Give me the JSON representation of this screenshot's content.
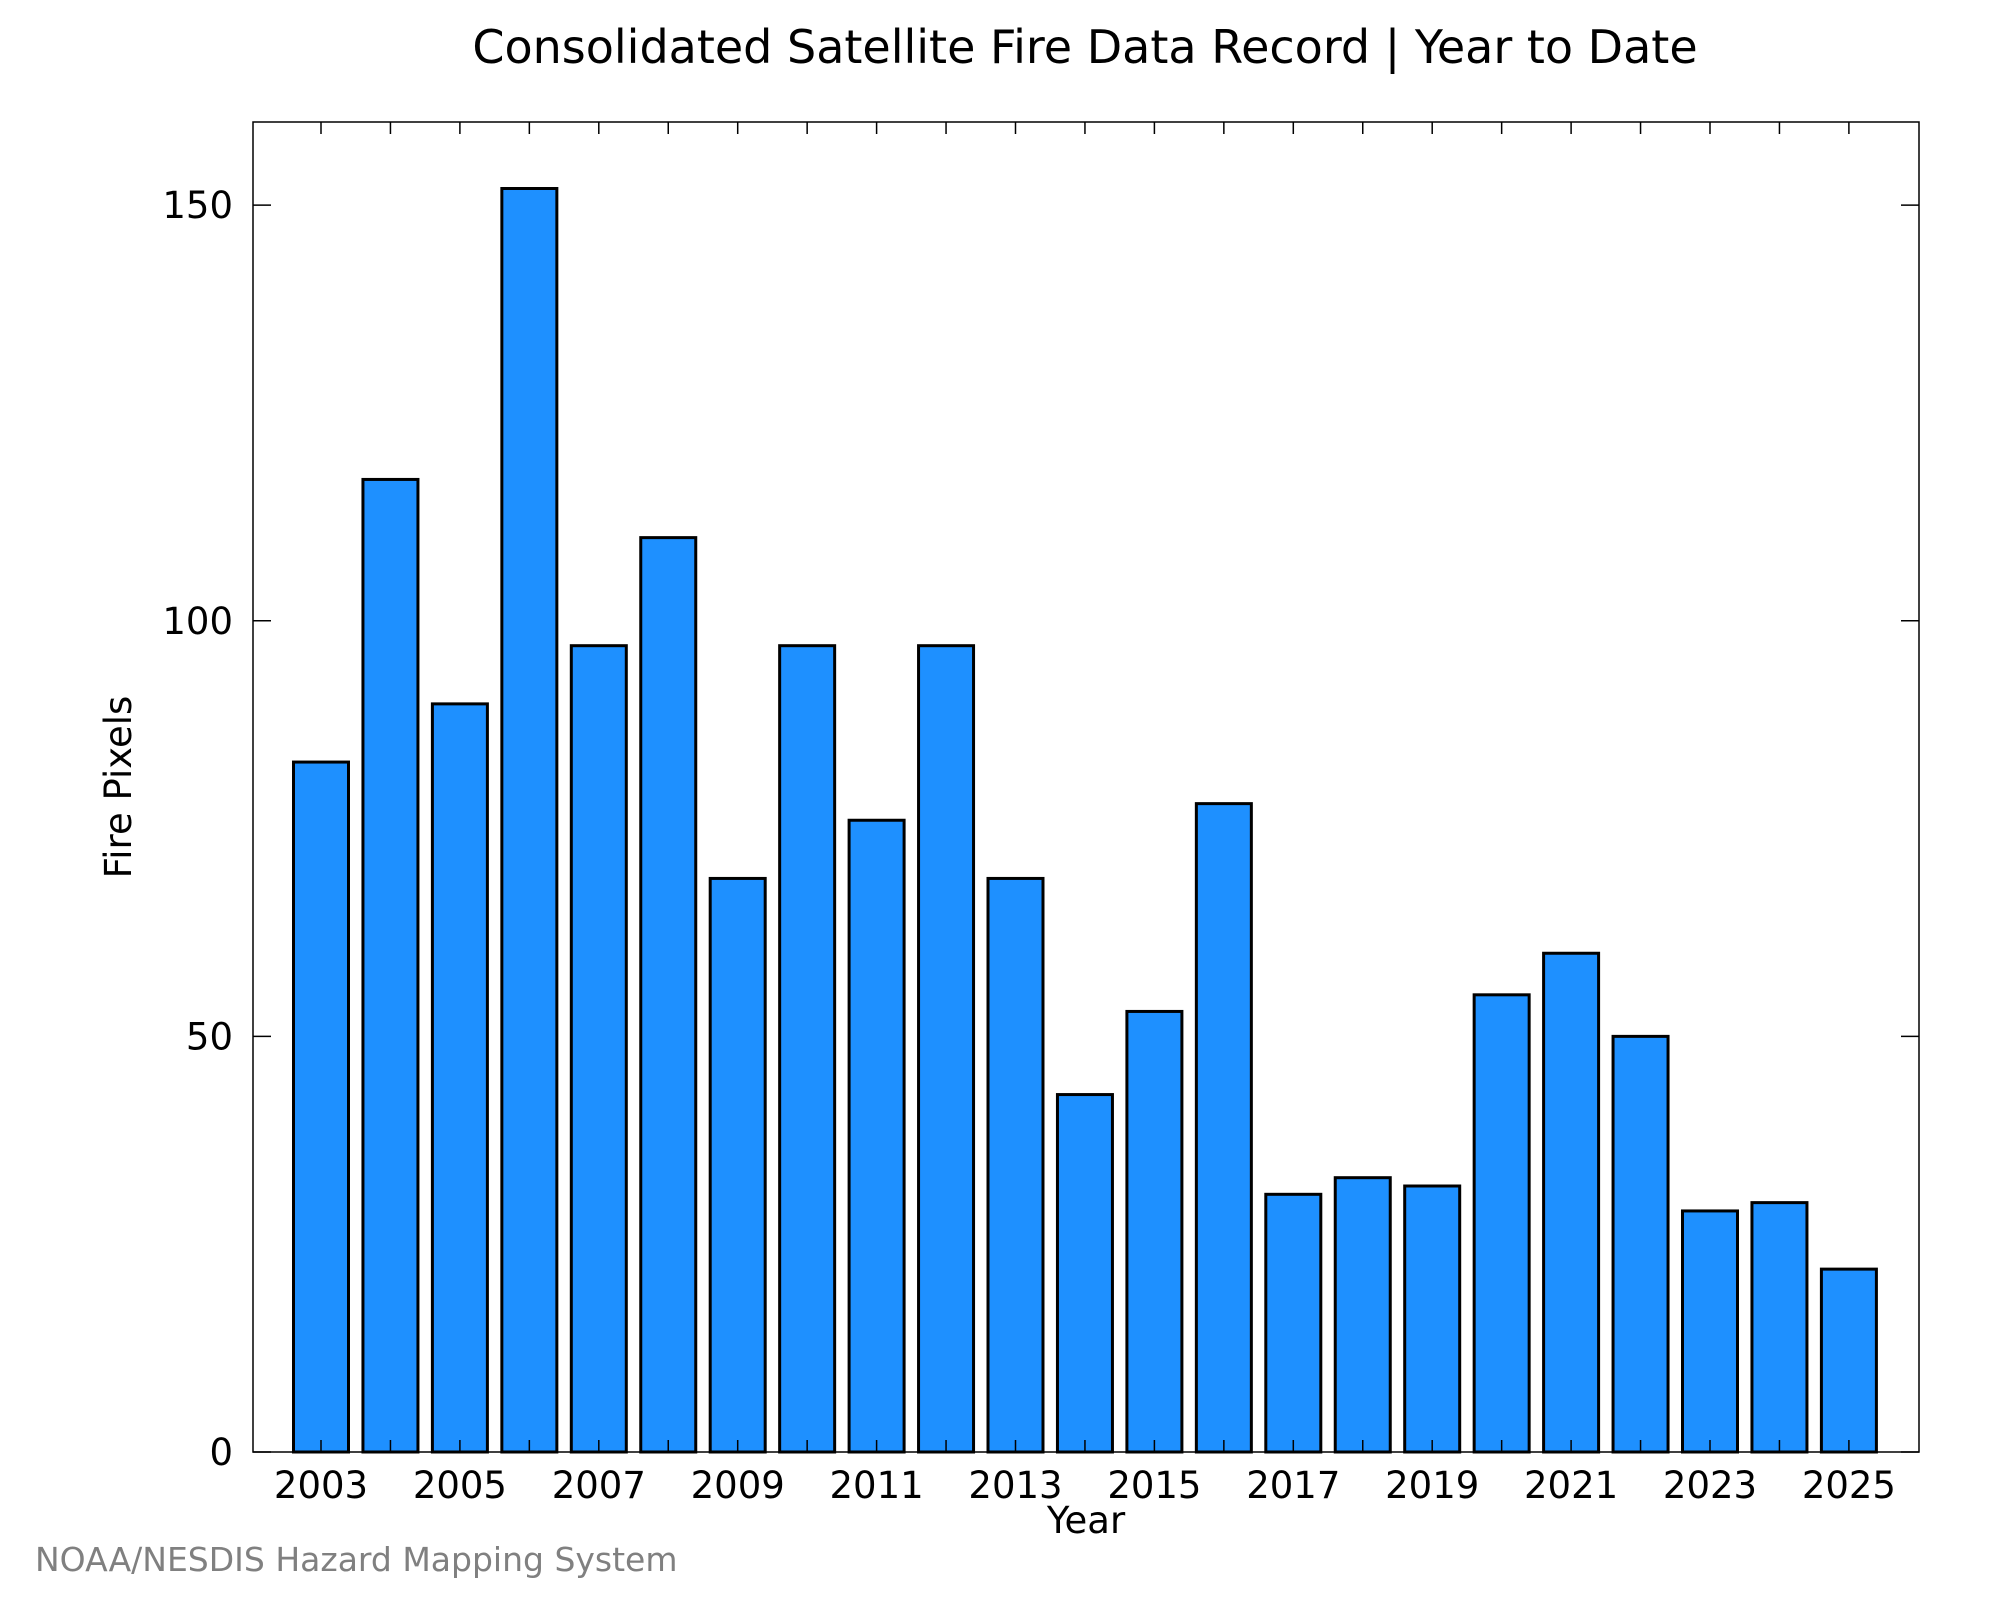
{
  "credit": "NOAA/NESDIS Hazard Mapping System",
  "colors": {
    "bar_fill": "#1e90ff",
    "bar_stroke": "#000000",
    "credit_text": "#808080"
  },
  "chart_data": {
    "type": "bar",
    "title": "Consolidated Satellite Fire Data Record | Year to Date",
    "xlabel": "Year",
    "ylabel": "Fire Pixels",
    "categories": [
      "2003",
      "2004",
      "2005",
      "2006",
      "2007",
      "2008",
      "2009",
      "2010",
      "2011",
      "2012",
      "2013",
      "2014",
      "2015",
      "2016",
      "2017",
      "2018",
      "2019",
      "2020",
      "2021",
      "2022",
      "2023",
      "2024",
      "2025"
    ],
    "values": [
      83,
      117,
      90,
      152,
      97,
      110,
      69,
      97,
      76,
      97,
      69,
      43,
      53,
      78,
      31,
      33,
      32,
      55,
      60,
      50,
      29,
      30,
      22
    ],
    "x_tick_labels": [
      "2003",
      "2005",
      "2007",
      "2009",
      "2011",
      "2013",
      "2015",
      "2017",
      "2019",
      "2021",
      "2023",
      "2025"
    ],
    "y_ticks": [
      0,
      50,
      100,
      150
    ],
    "ylim": [
      0,
      160
    ],
    "grid": false,
    "legend": "none"
  }
}
